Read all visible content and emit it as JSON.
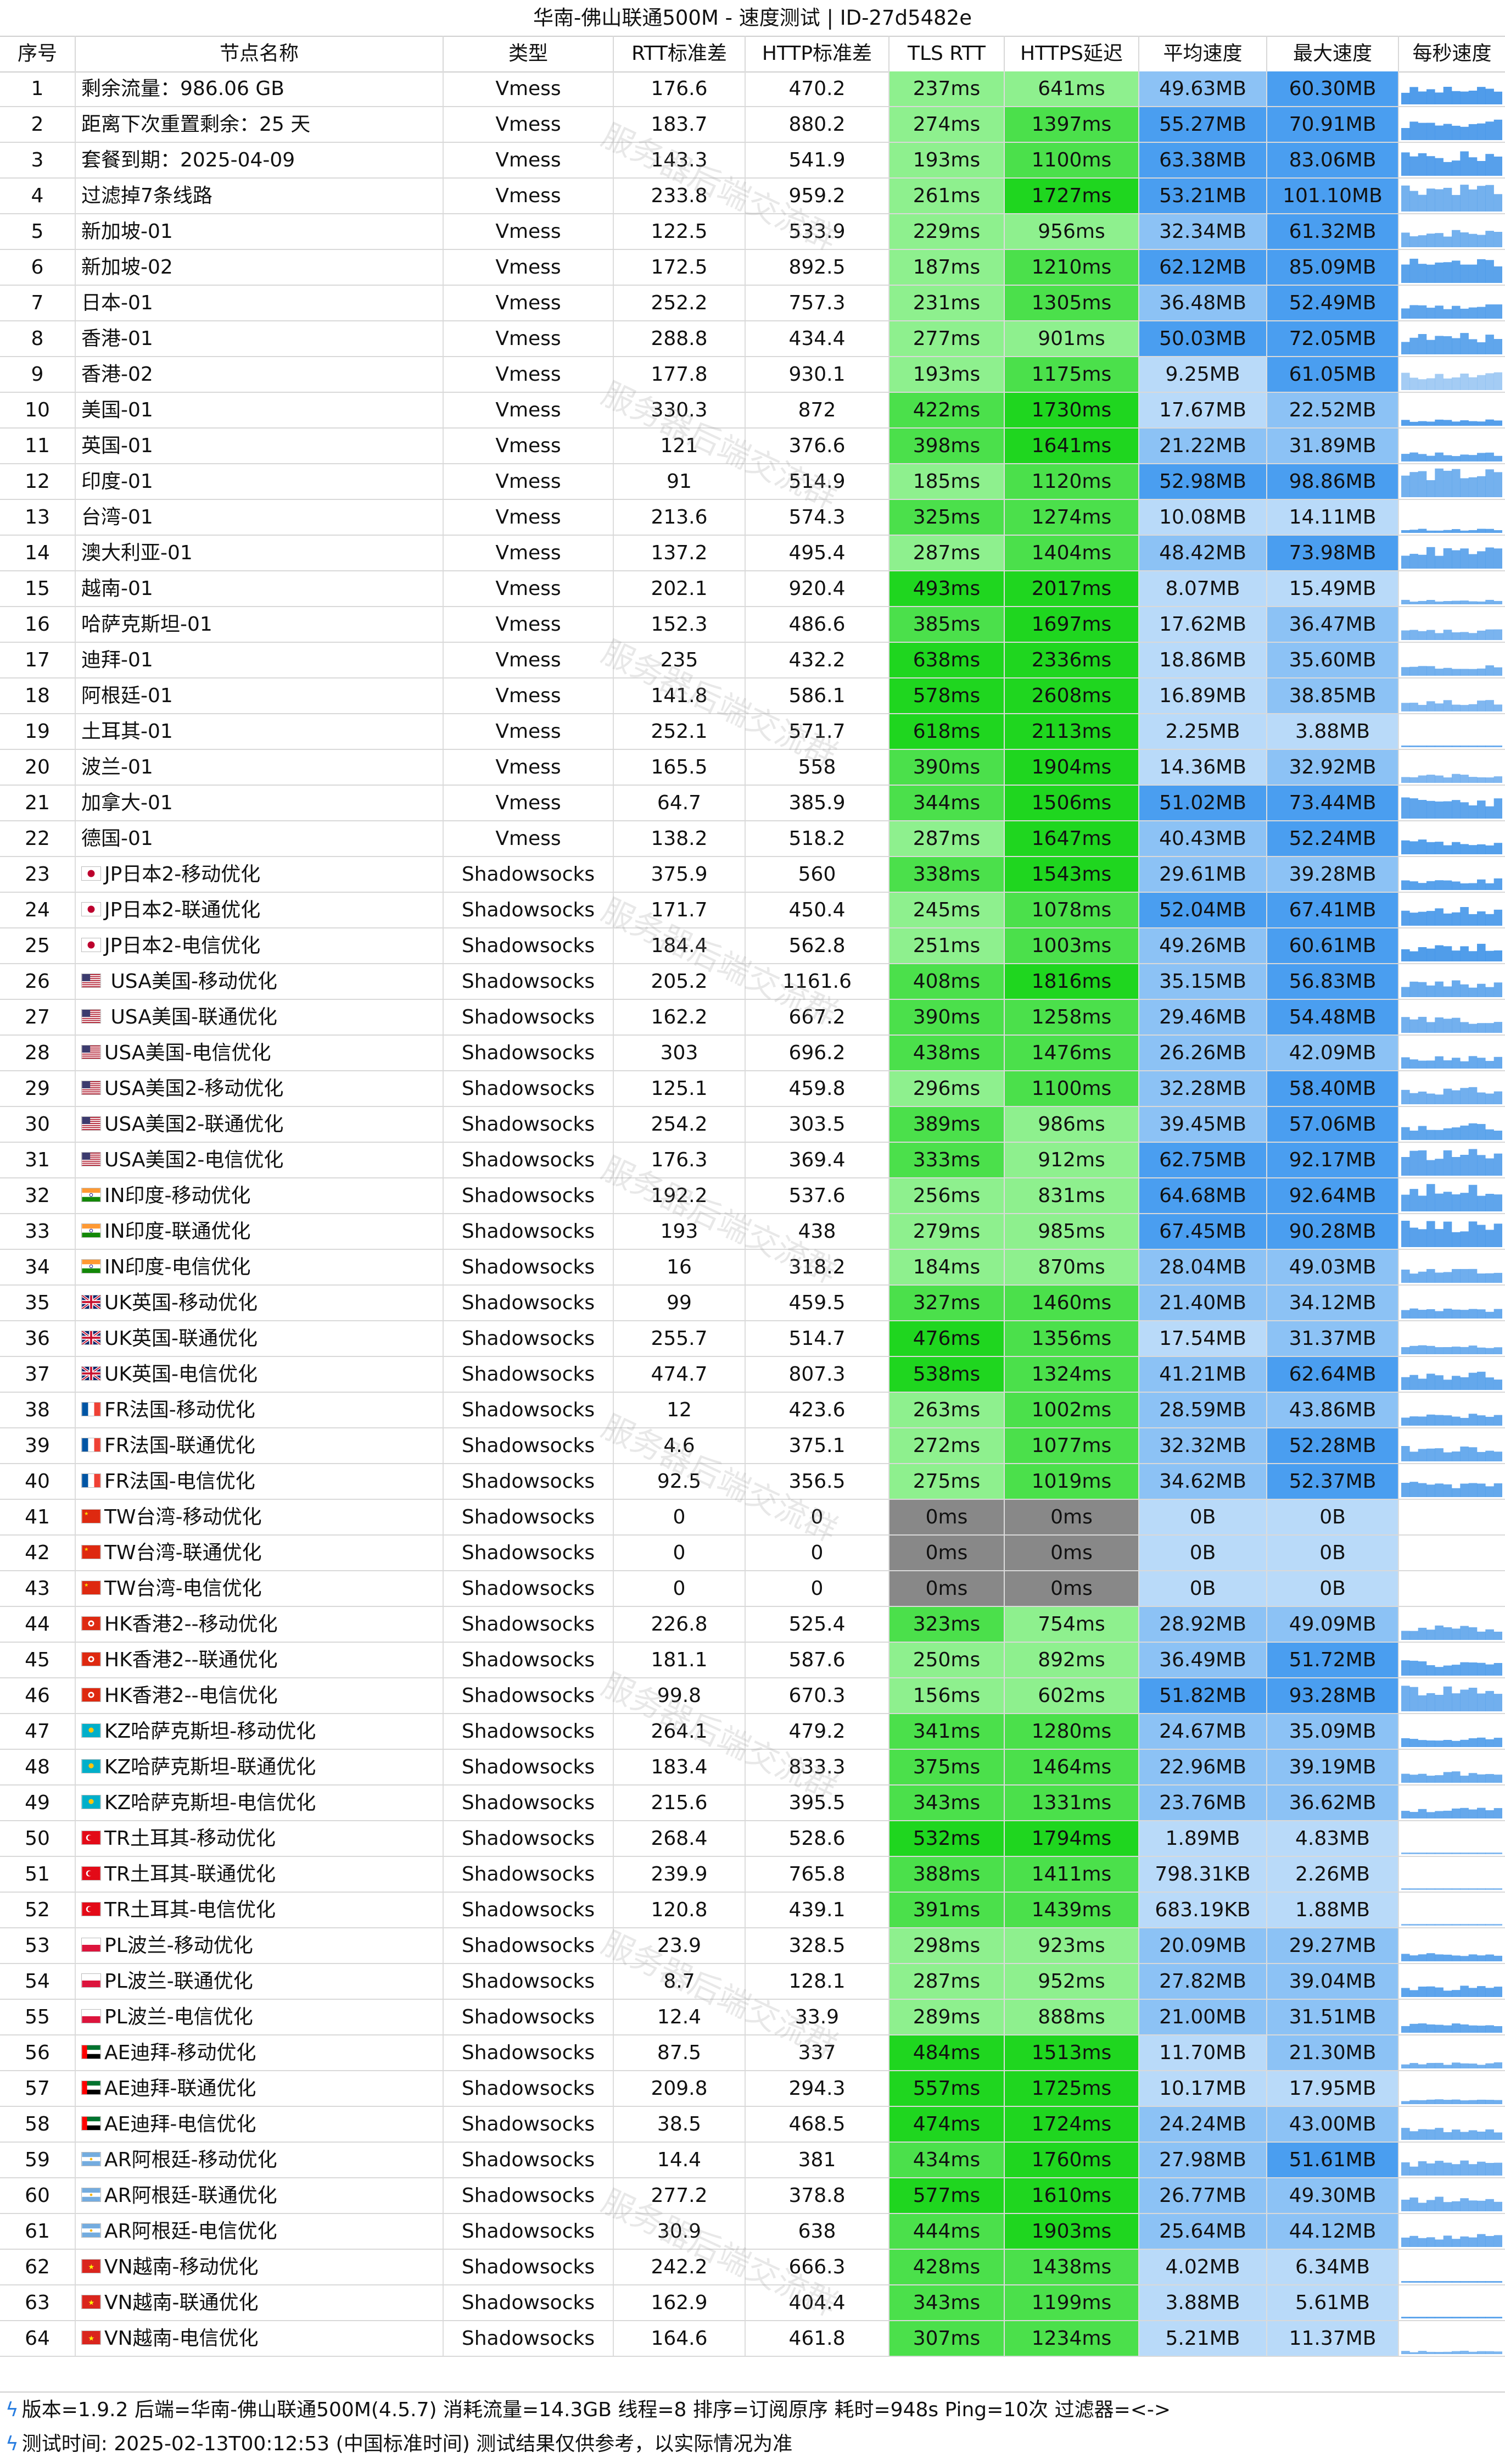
{
  "title": "华南-佛山联通500M - 速度测试 | ID-27d5482e",
  "headers": [
    "序号",
    "节点名称",
    "类型",
    "RTT标准差",
    "HTTP标准差",
    "TLS RTT",
    "HTTPS延迟",
    "平均速度",
    "最大速度",
    "每秒速度"
  ],
  "watermark": "服务器后端交流群",
  "colors": {
    "grey": "#888888",
    "green_light": "#8ef08e",
    "green_mid": "#4be04b",
    "green_dark": "#1fd61f",
    "blue_light": "#b9daf9",
    "blue_mid": "#8cc2f5",
    "blue_dark": "#4a9ef0",
    "spark": "#2f8ae6"
  },
  "rows": [
    {
      "idx": "1",
      "flag": "",
      "name": "剩余流量：986.06 GB",
      "type": "Vmess",
      "rtt": "176.6",
      "http": "470.2",
      "tls": "237ms",
      "https": "641ms",
      "avg": "49.63MB",
      "max": "60.30MB"
    },
    {
      "idx": "2",
      "flag": "",
      "name": "距离下次重置剩余：25 天",
      "type": "Vmess",
      "rtt": "183.7",
      "http": "880.2",
      "tls": "274ms",
      "https": "1397ms",
      "avg": "55.27MB",
      "max": "70.91MB"
    },
    {
      "idx": "3",
      "flag": "",
      "name": "套餐到期：2025-04-09",
      "type": "Vmess",
      "rtt": "143.3",
      "http": "541.9",
      "tls": "193ms",
      "https": "1100ms",
      "avg": "63.38MB",
      "max": "83.06MB"
    },
    {
      "idx": "4",
      "flag": "",
      "name": "过滤掉7条线路",
      "type": "Vmess",
      "rtt": "233.8",
      "http": "959.2",
      "tls": "261ms",
      "https": "1727ms",
      "avg": "53.21MB",
      "max": "101.10MB"
    },
    {
      "idx": "5",
      "flag": "",
      "name": "新加坡-01",
      "type": "Vmess",
      "rtt": "122.5",
      "http": "533.9",
      "tls": "229ms",
      "https": "956ms",
      "avg": "32.34MB",
      "max": "61.32MB"
    },
    {
      "idx": "6",
      "flag": "",
      "name": "新加坡-02",
      "type": "Vmess",
      "rtt": "172.5",
      "http": "892.5",
      "tls": "187ms",
      "https": "1210ms",
      "avg": "62.12MB",
      "max": "85.09MB"
    },
    {
      "idx": "7",
      "flag": "",
      "name": "日本-01",
      "type": "Vmess",
      "rtt": "252.2",
      "http": "757.3",
      "tls": "231ms",
      "https": "1305ms",
      "avg": "36.48MB",
      "max": "52.49MB"
    },
    {
      "idx": "8",
      "flag": "",
      "name": "香港-01",
      "type": "Vmess",
      "rtt": "288.8",
      "http": "434.4",
      "tls": "277ms",
      "https": "901ms",
      "avg": "50.03MB",
      "max": "72.05MB"
    },
    {
      "idx": "9",
      "flag": "",
      "name": "香港-02",
      "type": "Vmess",
      "rtt": "177.8",
      "http": "930.1",
      "tls": "193ms",
      "https": "1175ms",
      "avg": "9.25MB",
      "max": "61.05MB"
    },
    {
      "idx": "10",
      "flag": "",
      "name": "美国-01",
      "type": "Vmess",
      "rtt": "330.3",
      "http": "872",
      "tls": "422ms",
      "https": "1730ms",
      "avg": "17.67MB",
      "max": "22.52MB"
    },
    {
      "idx": "11",
      "flag": "",
      "name": "英国-01",
      "type": "Vmess",
      "rtt": "121",
      "http": "376.6",
      "tls": "398ms",
      "https": "1641ms",
      "avg": "21.22MB",
      "max": "31.89MB"
    },
    {
      "idx": "12",
      "flag": "",
      "name": "印度-01",
      "type": "Vmess",
      "rtt": "91",
      "http": "514.9",
      "tls": "185ms",
      "https": "1120ms",
      "avg": "52.98MB",
      "max": "98.86MB"
    },
    {
      "idx": "13",
      "flag": "",
      "name": "台湾-01",
      "type": "Vmess",
      "rtt": "213.6",
      "http": "574.3",
      "tls": "325ms",
      "https": "1274ms",
      "avg": "10.08MB",
      "max": "14.11MB"
    },
    {
      "idx": "14",
      "flag": "",
      "name": "澳大利亚-01",
      "type": "Vmess",
      "rtt": "137.2",
      "http": "495.4",
      "tls": "287ms",
      "https": "1404ms",
      "avg": "48.42MB",
      "max": "73.98MB"
    },
    {
      "idx": "15",
      "flag": "",
      "name": "越南-01",
      "type": "Vmess",
      "rtt": "202.1",
      "http": "920.4",
      "tls": "493ms",
      "https": "2017ms",
      "avg": "8.07MB",
      "max": "15.49MB"
    },
    {
      "idx": "16",
      "flag": "",
      "name": "哈萨克斯坦-01",
      "type": "Vmess",
      "rtt": "152.3",
      "http": "486.6",
      "tls": "385ms",
      "https": "1697ms",
      "avg": "17.62MB",
      "max": "36.47MB"
    },
    {
      "idx": "17",
      "flag": "",
      "name": "迪拜-01",
      "type": "Vmess",
      "rtt": "235",
      "http": "432.2",
      "tls": "638ms",
      "https": "2336ms",
      "avg": "18.86MB",
      "max": "35.60MB"
    },
    {
      "idx": "18",
      "flag": "",
      "name": "阿根廷-01",
      "type": "Vmess",
      "rtt": "141.8",
      "http": "586.1",
      "tls": "578ms",
      "https": "2608ms",
      "avg": "16.89MB",
      "max": "38.85MB"
    },
    {
      "idx": "19",
      "flag": "",
      "name": "土耳其-01",
      "type": "Vmess",
      "rtt": "252.1",
      "http": "571.7",
      "tls": "618ms",
      "https": "2113ms",
      "avg": "2.25MB",
      "max": "3.88MB"
    },
    {
      "idx": "20",
      "flag": "",
      "name": "波兰-01",
      "type": "Vmess",
      "rtt": "165.5",
      "http": "558",
      "tls": "390ms",
      "https": "1904ms",
      "avg": "14.36MB",
      "max": "32.92MB"
    },
    {
      "idx": "21",
      "flag": "",
      "name": "加拿大-01",
      "type": "Vmess",
      "rtt": "64.7",
      "http": "385.9",
      "tls": "344ms",
      "https": "1506ms",
      "avg": "51.02MB",
      "max": "73.44MB"
    },
    {
      "idx": "22",
      "flag": "",
      "name": "德国-01",
      "type": "Vmess",
      "rtt": "138.2",
      "http": "518.2",
      "tls": "287ms",
      "https": "1647ms",
      "avg": "40.43MB",
      "max": "52.24MB"
    },
    {
      "idx": "23",
      "flag": "jp",
      "name": "JP日本2-移动优化",
      "type": "Shadowsocks",
      "rtt": "375.9",
      "http": "560",
      "tls": "338ms",
      "https": "1543ms",
      "avg": "29.61MB",
      "max": "39.28MB"
    },
    {
      "idx": "24",
      "flag": "jp",
      "name": "JP日本2-联通优化",
      "type": "Shadowsocks",
      "rtt": "171.7",
      "http": "450.4",
      "tls": "245ms",
      "https": "1078ms",
      "avg": "52.04MB",
      "max": "67.41MB"
    },
    {
      "idx": "25",
      "flag": "jp",
      "name": "JP日本2-电信优化",
      "type": "Shadowsocks",
      "rtt": "184.4",
      "http": "562.8",
      "tls": "251ms",
      "https": "1003ms",
      "avg": "49.26MB",
      "max": "60.61MB"
    },
    {
      "idx": "26",
      "flag": "us",
      "name": " USA美国-移动优化",
      "type": "Shadowsocks",
      "rtt": "205.2",
      "http": "1161.6",
      "tls": "408ms",
      "https": "1816ms",
      "avg": "35.15MB",
      "max": "56.83MB"
    },
    {
      "idx": "27",
      "flag": "us",
      "name": " USA美国-联通优化",
      "type": "Shadowsocks",
      "rtt": "162.2",
      "http": "667.2",
      "tls": "390ms",
      "https": "1258ms",
      "avg": "29.46MB",
      "max": "54.48MB"
    },
    {
      "idx": "28",
      "flag": "us",
      "name": "USA美国-电信优化",
      "type": "Shadowsocks",
      "rtt": "303",
      "http": "696.2",
      "tls": "438ms",
      "https": "1476ms",
      "avg": "26.26MB",
      "max": "42.09MB"
    },
    {
      "idx": "29",
      "flag": "us",
      "name": "USA美国2-移动优化",
      "type": "Shadowsocks",
      "rtt": "125.1",
      "http": "459.8",
      "tls": "296ms",
      "https": "1100ms",
      "avg": "32.28MB",
      "max": "58.40MB"
    },
    {
      "idx": "30",
      "flag": "us",
      "name": "USA美国2-联通优化",
      "type": "Shadowsocks",
      "rtt": "254.2",
      "http": "303.5",
      "tls": "389ms",
      "https": "986ms",
      "avg": "39.45MB",
      "max": "57.06MB"
    },
    {
      "idx": "31",
      "flag": "us",
      "name": "USA美国2-电信优化",
      "type": "Shadowsocks",
      "rtt": "176.3",
      "http": "369.4",
      "tls": "333ms",
      "https": "912ms",
      "avg": "62.75MB",
      "max": "92.17MB"
    },
    {
      "idx": "32",
      "flag": "in",
      "name": "IN印度-移动优化",
      "type": "Shadowsocks",
      "rtt": "192.2",
      "http": "537.6",
      "tls": "256ms",
      "https": "831ms",
      "avg": "64.68MB",
      "max": "92.64MB"
    },
    {
      "idx": "33",
      "flag": "in",
      "name": "IN印度-联通优化",
      "type": "Shadowsocks",
      "rtt": "193",
      "http": "438",
      "tls": "279ms",
      "https": "985ms",
      "avg": "67.45MB",
      "max": "90.28MB"
    },
    {
      "idx": "34",
      "flag": "in",
      "name": "IN印度-电信优化",
      "type": "Shadowsocks",
      "rtt": "16",
      "http": "318.2",
      "tls": "184ms",
      "https": "870ms",
      "avg": "28.04MB",
      "max": "49.03MB"
    },
    {
      "idx": "35",
      "flag": "uk",
      "name": "UK英国-移动优化",
      "type": "Shadowsocks",
      "rtt": "99",
      "http": "459.5",
      "tls": "327ms",
      "https": "1460ms",
      "avg": "21.40MB",
      "max": "34.12MB"
    },
    {
      "idx": "36",
      "flag": "uk",
      "name": "UK英国-联通优化",
      "type": "Shadowsocks",
      "rtt": "255.7",
      "http": "514.7",
      "tls": "476ms",
      "https": "1356ms",
      "avg": "17.54MB",
      "max": "31.37MB"
    },
    {
      "idx": "37",
      "flag": "uk",
      "name": "UK英国-电信优化",
      "type": "Shadowsocks",
      "rtt": "474.7",
      "http": "807.3",
      "tls": "538ms",
      "https": "1324ms",
      "avg": "41.21MB",
      "max": "62.64MB"
    },
    {
      "idx": "38",
      "flag": "fr",
      "name": "FR法国-移动优化",
      "type": "Shadowsocks",
      "rtt": "12",
      "http": "423.6",
      "tls": "263ms",
      "https": "1002ms",
      "avg": "28.59MB",
      "max": "43.86MB"
    },
    {
      "idx": "39",
      "flag": "fr",
      "name": "FR法国-联通优化",
      "type": "Shadowsocks",
      "rtt": "4.6",
      "http": "375.1",
      "tls": "272ms",
      "https": "1077ms",
      "avg": "32.32MB",
      "max": "52.28MB"
    },
    {
      "idx": "40",
      "flag": "fr",
      "name": "FR法国-电信优化",
      "type": "Shadowsocks",
      "rtt": "92.5",
      "http": "356.5",
      "tls": "275ms",
      "https": "1019ms",
      "avg": "34.62MB",
      "max": "52.37MB"
    },
    {
      "idx": "41",
      "flag": "cn",
      "name": "TW台湾-移动优化",
      "type": "Shadowsocks",
      "rtt": "0",
      "http": "0",
      "tls": "0ms",
      "https": "0ms",
      "avg": "0B",
      "max": "0B"
    },
    {
      "idx": "42",
      "flag": "cn",
      "name": "TW台湾-联通优化",
      "type": "Shadowsocks",
      "rtt": "0",
      "http": "0",
      "tls": "0ms",
      "https": "0ms",
      "avg": "0B",
      "max": "0B"
    },
    {
      "idx": "43",
      "flag": "cn",
      "name": "TW台湾-电信优化",
      "type": "Shadowsocks",
      "rtt": "0",
      "http": "0",
      "tls": "0ms",
      "https": "0ms",
      "avg": "0B",
      "max": "0B"
    },
    {
      "idx": "44",
      "flag": "hk",
      "name": "HK香港2--移动优化",
      "type": "Shadowsocks",
      "rtt": "226.8",
      "http": "525.4",
      "tls": "323ms",
      "https": "754ms",
      "avg": "28.92MB",
      "max": "49.09MB"
    },
    {
      "idx": "45",
      "flag": "hk",
      "name": "HK香港2--联通优化",
      "type": "Shadowsocks",
      "rtt": "181.1",
      "http": "587.6",
      "tls": "250ms",
      "https": "892ms",
      "avg": "36.49MB",
      "max": "51.72MB"
    },
    {
      "idx": "46",
      "flag": "hk",
      "name": "HK香港2--电信优化",
      "type": "Shadowsocks",
      "rtt": "99.8",
      "http": "670.3",
      "tls": "156ms",
      "https": "602ms",
      "avg": "51.82MB",
      "max": "93.28MB"
    },
    {
      "idx": "47",
      "flag": "kz",
      "name": "KZ哈萨克斯坦-移动优化",
      "type": "Shadowsocks",
      "rtt": "264.1",
      "http": "479.2",
      "tls": "341ms",
      "https": "1280ms",
      "avg": "24.67MB",
      "max": "35.09MB"
    },
    {
      "idx": "48",
      "flag": "kz",
      "name": "KZ哈萨克斯坦-联通优化",
      "type": "Shadowsocks",
      "rtt": "183.4",
      "http": "833.3",
      "tls": "375ms",
      "https": "1464ms",
      "avg": "22.96MB",
      "max": "39.19MB"
    },
    {
      "idx": "49",
      "flag": "kz",
      "name": "KZ哈萨克斯坦-电信优化",
      "type": "Shadowsocks",
      "rtt": "215.6",
      "http": "395.5",
      "tls": "343ms",
      "https": "1331ms",
      "avg": "23.76MB",
      "max": "36.62MB"
    },
    {
      "idx": "50",
      "flag": "tr",
      "name": "TR土耳其-移动优化",
      "type": "Shadowsocks",
      "rtt": "268.4",
      "http": "528.6",
      "tls": "532ms",
      "https": "1794ms",
      "avg": "1.89MB",
      "max": "4.83MB"
    },
    {
      "idx": "51",
      "flag": "tr",
      "name": "TR土耳其-联通优化",
      "type": "Shadowsocks",
      "rtt": "239.9",
      "http": "765.8",
      "tls": "388ms",
      "https": "1411ms",
      "avg": "798.31KB",
      "max": "2.26MB"
    },
    {
      "idx": "52",
      "flag": "tr",
      "name": "TR土耳其-电信优化",
      "type": "Shadowsocks",
      "rtt": "120.8",
      "http": "439.1",
      "tls": "391ms",
      "https": "1439ms",
      "avg": "683.19KB",
      "max": "1.88MB"
    },
    {
      "idx": "53",
      "flag": "pl",
      "name": "PL波兰-移动优化",
      "type": "Shadowsocks",
      "rtt": "23.9",
      "http": "328.5",
      "tls": "298ms",
      "https": "923ms",
      "avg": "20.09MB",
      "max": "29.27MB"
    },
    {
      "idx": "54",
      "flag": "pl",
      "name": "PL波兰-联通优化",
      "type": "Shadowsocks",
      "rtt": "8.7",
      "http": "128.1",
      "tls": "287ms",
      "https": "952ms",
      "avg": "27.82MB",
      "max": "39.04MB"
    },
    {
      "idx": "55",
      "flag": "pl",
      "name": "PL波兰-电信优化",
      "type": "Shadowsocks",
      "rtt": "12.4",
      "http": "33.9",
      "tls": "289ms",
      "https": "888ms",
      "avg": "21.00MB",
      "max": "31.51MB"
    },
    {
      "idx": "56",
      "flag": "ae",
      "name": "AE迪拜-移动优化",
      "type": "Shadowsocks",
      "rtt": "87.5",
      "http": "337",
      "tls": "484ms",
      "https": "1513ms",
      "avg": "11.70MB",
      "max": "21.30MB"
    },
    {
      "idx": "57",
      "flag": "ae",
      "name": "AE迪拜-联通优化",
      "type": "Shadowsocks",
      "rtt": "209.8",
      "http": "294.3",
      "tls": "557ms",
      "https": "1725ms",
      "avg": "10.17MB",
      "max": "17.95MB"
    },
    {
      "idx": "58",
      "flag": "ae",
      "name": "AE迪拜-电信优化",
      "type": "Shadowsocks",
      "rtt": "38.5",
      "http": "468.5",
      "tls": "474ms",
      "https": "1724ms",
      "avg": "24.24MB",
      "max": "43.00MB"
    },
    {
      "idx": "59",
      "flag": "ar",
      "name": "AR阿根廷-移动优化",
      "type": "Shadowsocks",
      "rtt": "14.4",
      "http": "381",
      "tls": "434ms",
      "https": "1760ms",
      "avg": "27.98MB",
      "max": "51.61MB"
    },
    {
      "idx": "60",
      "flag": "ar",
      "name": "AR阿根廷-联通优化",
      "type": "Shadowsocks",
      "rtt": "277.2",
      "http": "378.8",
      "tls": "577ms",
      "https": "1610ms",
      "avg": "26.77MB",
      "max": "49.30MB"
    },
    {
      "idx": "61",
      "flag": "ar",
      "name": "AR阿根廷-电信优化",
      "type": "Shadowsocks",
      "rtt": "30.9",
      "http": "638",
      "tls": "444ms",
      "https": "1903ms",
      "avg": "25.64MB",
      "max": "44.12MB"
    },
    {
      "idx": "62",
      "flag": "vn",
      "name": "VN越南-移动优化",
      "type": "Shadowsocks",
      "rtt": "242.2",
      "http": "666.3",
      "tls": "428ms",
      "https": "1438ms",
      "avg": "4.02MB",
      "max": "6.34MB"
    },
    {
      "idx": "63",
      "flag": "vn",
      "name": "VN越南-联通优化",
      "type": "Shadowsocks",
      "rtt": "162.9",
      "http": "404.4",
      "tls": "343ms",
      "https": "1199ms",
      "avg": "3.88MB",
      "max": "5.61MB"
    },
    {
      "idx": "64",
      "flag": "vn",
      "name": "VN越南-电信优化",
      "type": "Shadowsocks",
      "rtt": "164.6",
      "http": "461.8",
      "tls": "307ms",
      "https": "1234ms",
      "avg": "5.21MB",
      "max": "11.37MB"
    }
  ],
  "footer": {
    "line1": "版本=1.9.2  后端=华南-佛山联通500M(4.5.7) 消耗流量=14.3GB  线程=8  排序=订阅原序  耗时=948s  Ping=10次  过滤器=<->",
    "line2": "测试时间: 2025-02-13T00:12:53 (中国标准时间)  测试结果仅供参考，以实际情况为准"
  }
}
